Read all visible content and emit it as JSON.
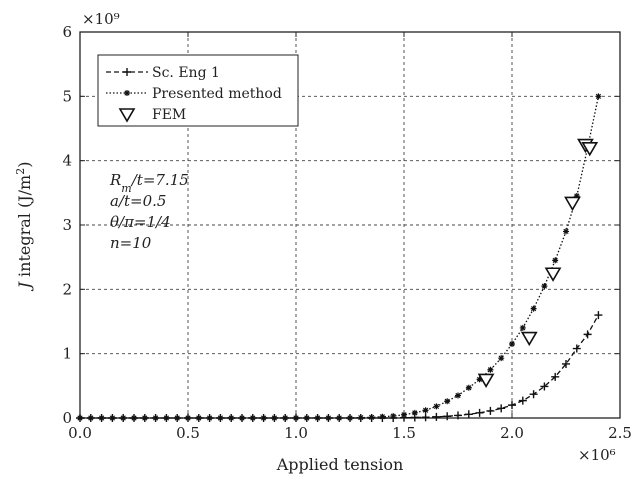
{
  "chart_data": {
    "type": "line",
    "xlabel": "Applied tension",
    "ylabel": "J integral (J/m²)",
    "x_exponent_label": "×10⁶",
    "y_exponent_label": "×10⁹",
    "xlim": [
      0,
      2.5
    ],
    "ylim": [
      0,
      6
    ],
    "x_ticks": [
      "0.0",
      "0.5",
      "1.0",
      "1.5",
      "2.0",
      "2.5"
    ],
    "y_ticks": [
      "0",
      "1",
      "2",
      "3",
      "4",
      "5",
      "6"
    ],
    "grid": true,
    "legend_position": "top-left",
    "series": [
      {
        "name": "Sc. Eng 1",
        "line_style": "dashed",
        "marker": "plus",
        "x": [
          0.0,
          0.05,
          0.1,
          0.15,
          0.2,
          0.25,
          0.3,
          0.35,
          0.4,
          0.45,
          0.5,
          0.55,
          0.6,
          0.65,
          0.7,
          0.75,
          0.8,
          0.85,
          0.9,
          0.95,
          1.0,
          1.05,
          1.1,
          1.15,
          1.2,
          1.25,
          1.3,
          1.35,
          1.4,
          1.45,
          1.5,
          1.55,
          1.6,
          1.65,
          1.7,
          1.75,
          1.8,
          1.85,
          1.9,
          1.95,
          2.0,
          2.05,
          2.1,
          2.15,
          2.2,
          2.25,
          2.3,
          2.35,
          2.4
        ],
        "y": [
          0,
          0,
          0,
          0,
          0,
          0,
          0,
          0,
          0,
          0,
          0,
          0,
          0,
          0,
          0,
          0,
          0,
          0,
          0,
          0,
          0,
          0,
          0,
          0,
          0,
          0,
          0,
          0,
          0,
          0,
          0.005,
          0.008,
          0.012,
          0.018,
          0.027,
          0.04,
          0.058,
          0.08,
          0.11,
          0.15,
          0.2,
          0.27,
          0.37,
          0.49,
          0.64,
          0.84,
          1.08,
          1.3,
          1.6
        ]
      },
      {
        "name": "Presented method",
        "line_style": "dotted",
        "marker": "star",
        "x": [
          0.0,
          0.05,
          0.1,
          0.15,
          0.2,
          0.25,
          0.3,
          0.35,
          0.4,
          0.45,
          0.5,
          0.55,
          0.6,
          0.65,
          0.7,
          0.75,
          0.8,
          0.85,
          0.9,
          0.95,
          1.0,
          1.05,
          1.1,
          1.15,
          1.2,
          1.25,
          1.3,
          1.35,
          1.4,
          1.45,
          1.5,
          1.55,
          1.6,
          1.65,
          1.7,
          1.75,
          1.8,
          1.85,
          1.9,
          1.95,
          2.0,
          2.05,
          2.1,
          2.15,
          2.2,
          2.25,
          2.3,
          2.35,
          2.4
        ],
        "y": [
          0,
          0,
          0,
          0,
          0,
          0,
          0,
          0,
          0,
          0,
          0,
          0,
          0,
          0,
          0,
          0,
          0,
          0,
          0,
          0,
          0,
          0,
          0,
          0,
          0,
          0,
          0.005,
          0.01,
          0.02,
          0.03,
          0.05,
          0.08,
          0.12,
          0.18,
          0.26,
          0.35,
          0.47,
          0.6,
          0.75,
          0.93,
          1.15,
          1.4,
          1.7,
          2.05,
          2.45,
          2.9,
          3.45,
          4.2,
          5.0
        ]
      },
      {
        "name": "FEM",
        "line_style": "none",
        "marker": "triangle-down",
        "x": [
          1.88,
          2.08,
          2.19,
          2.28,
          2.34,
          2.36
        ],
        "y": [
          0.6,
          1.25,
          2.25,
          3.35,
          4.25,
          4.2
        ]
      }
    ],
    "annotations": [
      "Rm/t=7.15",
      "a/t=0.5",
      "θ/π=1/4",
      "n=10"
    ]
  }
}
